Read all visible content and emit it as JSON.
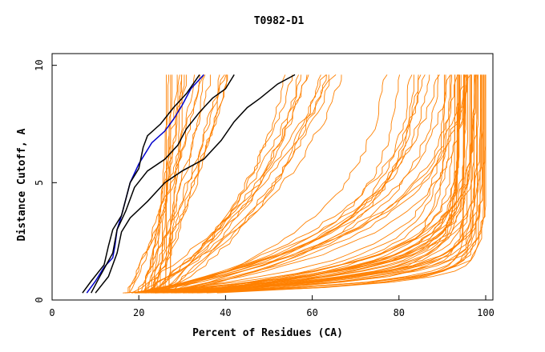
{
  "chart_data": {
    "type": "line",
    "title": "T0982-D1",
    "xlabel": "Percent of Residues (CA)",
    "ylabel": "Distance Cutoff, A",
    "xlim": [
      0,
      100
    ],
    "ylim": [
      0,
      10
    ],
    "x_ticks": [
      0,
      20,
      40,
      60,
      80,
      100
    ],
    "y_ticks": [
      0,
      5,
      10
    ],
    "grid": false,
    "legend": "none",
    "colors": {
      "models": "#ff8000",
      "highlight_blue": "#0000cc",
      "highlight_black": "#000000"
    },
    "highlight_series": [
      {
        "color": "#0000cc",
        "points": [
          [
            8,
            0.3
          ],
          [
            10,
            0.8
          ],
          [
            12,
            1.4
          ],
          [
            14,
            1.8
          ],
          [
            14.5,
            2.3
          ],
          [
            15,
            3
          ],
          [
            16,
            3.6
          ],
          [
            17,
            4.3
          ],
          [
            18,
            5
          ],
          [
            20,
            5.8
          ],
          [
            23,
            6.7
          ],
          [
            26,
            7.2
          ],
          [
            28,
            7.7
          ],
          [
            30,
            8.3
          ],
          [
            32,
            9
          ],
          [
            35,
            9.6
          ]
        ]
      },
      {
        "color": "#000000",
        "points": [
          [
            7,
            0.3
          ],
          [
            9,
            0.8
          ],
          [
            12,
            1.5
          ],
          [
            13,
            2.3
          ],
          [
            14,
            3
          ],
          [
            16,
            3.6
          ],
          [
            17,
            4.3
          ],
          [
            18,
            5
          ],
          [
            20,
            5.6
          ],
          [
            21,
            6.5
          ],
          [
            22,
            7
          ],
          [
            25,
            7.5
          ],
          [
            28,
            8.2
          ],
          [
            31,
            8.8
          ],
          [
            34,
            9.6
          ]
        ]
      },
      {
        "color": "#000000",
        "points": [
          [
            9,
            0.3
          ],
          [
            11,
            1
          ],
          [
            14,
            2
          ],
          [
            15,
            3
          ],
          [
            17,
            3.8
          ],
          [
            19,
            4.8
          ],
          [
            22,
            5.5
          ],
          [
            26,
            6
          ],
          [
            29,
            6.6
          ],
          [
            31,
            7.3
          ],
          [
            34,
            8
          ],
          [
            37,
            8.6
          ],
          [
            40,
            9
          ],
          [
            42,
            9.6
          ]
        ]
      },
      {
        "color": "#000000",
        "points": [
          [
            10,
            0.3
          ],
          [
            13,
            1
          ],
          [
            15,
            2
          ],
          [
            16,
            2.9
          ],
          [
            18,
            3.5
          ],
          [
            22,
            4.2
          ],
          [
            26,
            5
          ],
          [
            30,
            5.5
          ],
          [
            35,
            6
          ],
          [
            39,
            6.8
          ],
          [
            42,
            7.6
          ],
          [
            45,
            8.2
          ],
          [
            48,
            8.6
          ],
          [
            52,
            9.2
          ],
          [
            56,
            9.6
          ]
        ]
      }
    ],
    "model_series_description_fraction_bands": [
      {
        "count": 10,
        "x_start": [
          21,
          27
        ],
        "x_end": [
          24,
          31
        ],
        "shape": 0.1
      },
      {
        "count": 10,
        "x_start": [
          17,
          24
        ],
        "x_end": [
          32,
          44
        ],
        "shape": 0.25
      },
      {
        "count": 12,
        "x_start": [
          18,
          28
        ],
        "x_end": [
          52,
          70
        ],
        "shape": 0.5
      },
      {
        "count": 16,
        "x_start": [
          16,
          30
        ],
        "x_end": [
          76,
          97
        ],
        "shape": 1.2
      },
      {
        "count": 18,
        "x_start": [
          16,
          34
        ],
        "x_end": [
          90,
          99.5
        ],
        "shape": 2.6
      },
      {
        "count": 14,
        "x_start": [
          18,
          30
        ],
        "x_end": [
          92,
          100
        ],
        "shape": 4.5
      },
      {
        "count": 10,
        "x_start": [
          20,
          40
        ],
        "x_end": [
          94,
          100
        ],
        "shape": 7
      }
    ]
  }
}
